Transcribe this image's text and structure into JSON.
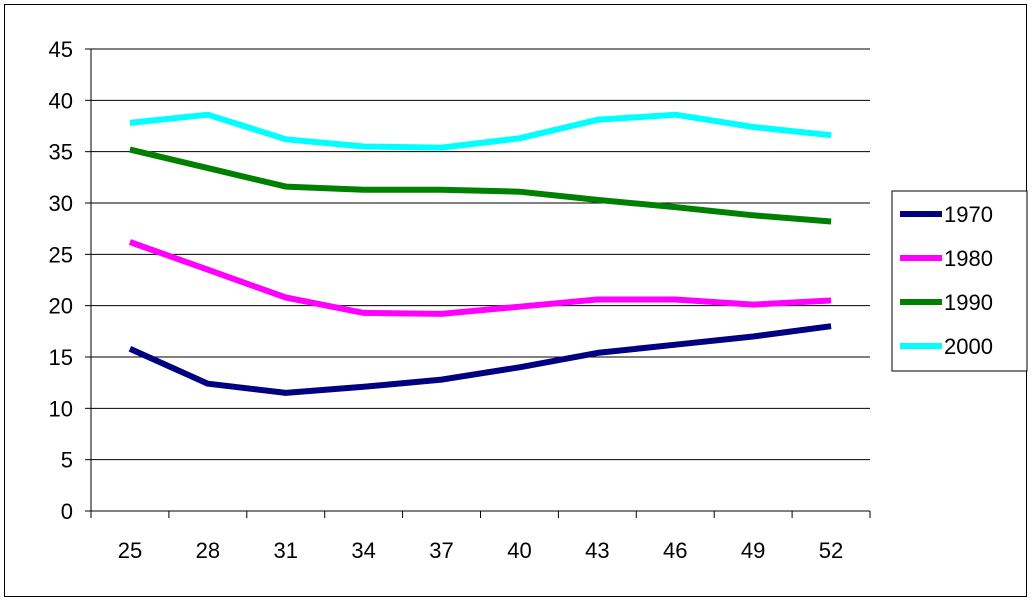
{
  "chart_data": {
    "type": "line",
    "title": "",
    "xlabel": "",
    "ylabel": "",
    "x": [
      25,
      28,
      31,
      34,
      37,
      40,
      43,
      46,
      49,
      52
    ],
    "ylim": [
      0,
      45
    ],
    "yticks": [
      0,
      5,
      10,
      15,
      20,
      25,
      30,
      35,
      40,
      45
    ],
    "grid": true,
    "legend_position": "right",
    "series": [
      {
        "name": "1970",
        "color": "#000080",
        "values": [
          15.8,
          12.4,
          11.5,
          12.1,
          12.8,
          14.0,
          15.4,
          16.2,
          17.0,
          18.0
        ]
      },
      {
        "name": "1980",
        "color": "#ff00ff",
        "values": [
          26.2,
          23.5,
          20.8,
          19.3,
          19.2,
          19.9,
          20.6,
          20.6,
          20.1,
          20.5
        ]
      },
      {
        "name": "1990",
        "color": "#008000",
        "values": [
          35.2,
          33.4,
          31.6,
          31.3,
          31.3,
          31.1,
          30.3,
          29.6,
          28.8,
          28.2
        ]
      },
      {
        "name": "2000",
        "color": "#00ffff",
        "values": [
          37.8,
          38.6,
          36.2,
          35.5,
          35.4,
          36.3,
          38.1,
          38.6,
          37.4,
          36.6
        ]
      }
    ]
  }
}
